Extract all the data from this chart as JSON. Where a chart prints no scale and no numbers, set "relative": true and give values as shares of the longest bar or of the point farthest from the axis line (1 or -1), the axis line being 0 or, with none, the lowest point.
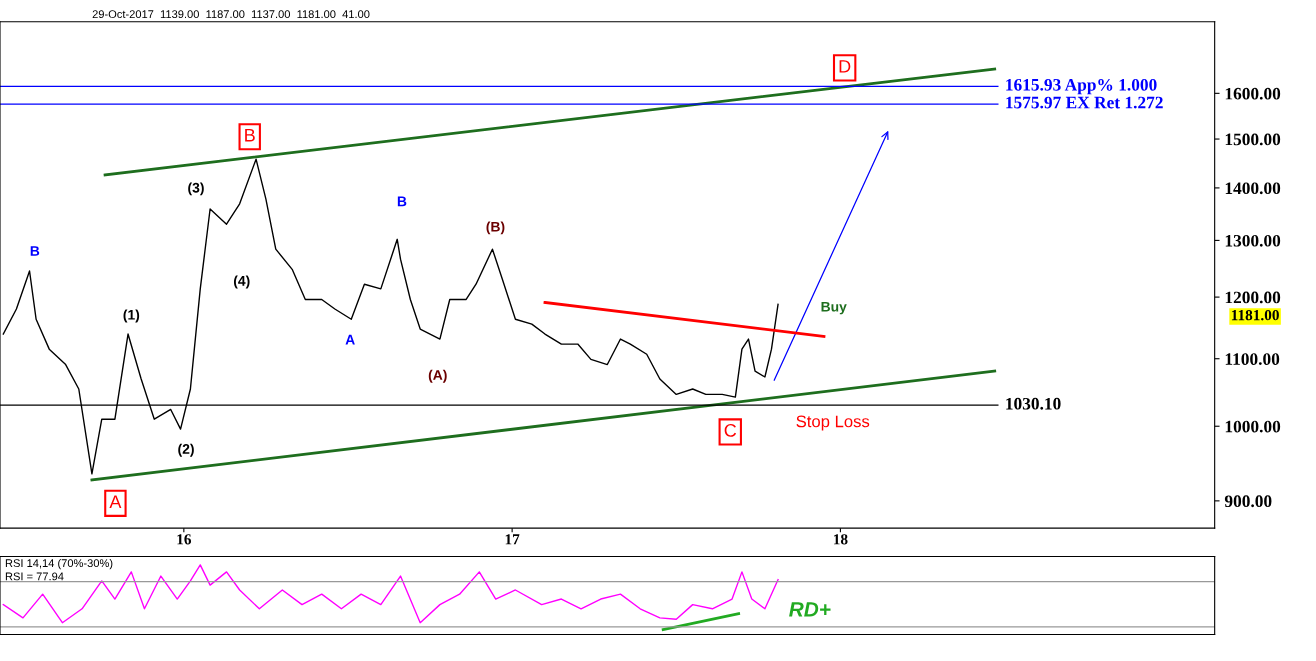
{
  "chart_data": [
    {
      "type": "line",
      "log": "y",
      "grid": false,
      "legend": false,
      "xlim": [
        2015.44,
        2019.14
      ],
      "xticks": [
        {
          "value": 2016,
          "label": "16"
        },
        {
          "value": 2017,
          "label": "17"
        },
        {
          "value": 2018,
          "label": "18"
        }
      ],
      "ylim": [
        866,
        1770
      ],
      "yticks": [
        {
          "value": 900,
          "label": "900.00"
        },
        {
          "value": 1000,
          "label": "1000.00"
        },
        {
          "value": 1100,
          "label": "1100.00"
        },
        {
          "value": 1200,
          "label": "1200.00"
        },
        {
          "value": 1300,
          "label": "1300.00"
        },
        {
          "value": 1400,
          "label": "1400.00"
        },
        {
          "value": 1500,
          "label": "1500.00"
        },
        {
          "value": 1600,
          "label": "1600.00"
        }
      ],
      "series": [
        {
          "color": "#000000",
          "x": [
            2015.45,
            2015.49,
            2015.53,
            2015.55,
            2015.59,
            2015.64,
            2015.68,
            2015.72,
            2015.75,
            2015.79,
            2015.83,
            2015.87,
            2015.91,
            2015.96,
            2015.99,
            2016.02,
            2016.05,
            2016.08,
            2016.13,
            2016.17,
            2016.22,
            2016.25,
            2016.28,
            2016.33,
            2016.37,
            2016.42,
            2016.46,
            2016.51,
            2016.55,
            2016.6,
            2016.65,
            2016.66,
            2016.69,
            2016.72,
            2016.78,
            2016.81,
            2016.86,
            2016.89,
            2016.94,
            2016.97,
            2017.01,
            2017.06,
            2017.1,
            2017.15,
            2017.2,
            2017.24,
            2017.29,
            2017.33,
            2017.36,
            2017.41,
            2017.45,
            2017.5,
            2017.55,
            2017.59,
            2017.64,
            2017.68,
            2017.7,
            2017.72,
            2017.74,
            2017.77,
            2017.79,
            2017.81
          ],
          "values": [
            1139,
            1180,
            1245,
            1163,
            1115,
            1091,
            1054,
            935,
            1010,
            1010,
            1139,
            1069,
            1010,
            1024,
            996,
            1054,
            1214,
            1359,
            1330,
            1369,
            1458,
            1378,
            1284,
            1248,
            1196,
            1196,
            1180,
            1163,
            1222,
            1214,
            1302,
            1266,
            1196,
            1147,
            1131,
            1196,
            1196,
            1222,
            1284,
            1231,
            1163,
            1155,
            1139,
            1123,
            1123,
            1099,
            1091,
            1131,
            1123,
            1107,
            1069,
            1046,
            1054,
            1046,
            1046,
            1042,
            1115,
            1131,
            1081,
            1072,
            1115,
            1188
          ]
        },
        {
          "color": "#1e6e1e",
          "x": [
            2015.76,
            2018.47
          ],
          "values": [
            1426,
            1656
          ]
        },
        {
          "color": "#1e6e1e",
          "x": [
            2015.72,
            2018.47
          ],
          "values": [
            927,
            1081
          ]
        },
        {
          "color": "#ff0000",
          "x": [
            2017.1,
            2017.95
          ],
          "values": [
            1191,
            1135
          ]
        }
      ],
      "ref_lines": [
        {
          "axis": "y",
          "value": 1030.1,
          "label": "1030.10",
          "color": "#000000"
        },
        {
          "axis": "y",
          "value": 1615.93,
          "label": "1615.93 App% 1.000",
          "color": "#0000ff"
        },
        {
          "axis": "y",
          "value": 1575.97,
          "label": "1575.97 EX Ret 1.272",
          "color": "#0000ff"
        }
      ],
      "annotations": [
        "29-Oct-2017  1139.00  1187.00  1137.00  1181.00  41.00",
        "1181.00",
        "B",
        "A",
        "C",
        "D",
        "(1)",
        "(2)",
        "(3)",
        "(4)",
        "B",
        "A",
        "B",
        "(A)",
        "(B)",
        "Stop Loss",
        "Buy"
      ]
    },
    {
      "type": "line",
      "relative": true,
      "grid": false,
      "legend": false,
      "xlim": [
        2015.44,
        2019.14
      ],
      "series": [
        {
          "color": "#ff00ff",
          "x": [
            2015.45,
            2015.51,
            2015.57,
            2015.63,
            2015.69,
            2015.75,
            2015.79,
            2015.84,
            2015.88,
            2015.93,
            2015.98,
            2016.02,
            2016.05,
            2016.08,
            2016.13,
            2016.17,
            2016.23,
            2016.3,
            2016.36,
            2016.42,
            2016.48,
            2016.54,
            2016.6,
            2016.66,
            2016.72,
            2016.78,
            2016.84,
            2016.9,
            2016.95,
            2017.01,
            2017.09,
            2017.15,
            2017.21,
            2017.27,
            2017.33,
            2017.39,
            2017.45,
            2017.5,
            2017.55,
            2017.61,
            2017.67,
            2017.7,
            2017.73,
            2017.77,
            2017.81
          ],
          "values": [
            0.43,
            0.24,
            0.58,
            0.17,
            0.37,
            0.77,
            0.51,
            0.9,
            0.37,
            0.84,
            0.51,
            0.77,
            1.0,
            0.71,
            0.9,
            0.64,
            0.37,
            0.64,
            0.43,
            0.58,
            0.37,
            0.58,
            0.43,
            0.84,
            0.17,
            0.43,
            0.58,
            0.9,
            0.51,
            0.64,
            0.43,
            0.51,
            0.37,
            0.51,
            0.58,
            0.37,
            0.24,
            0.22,
            0.43,
            0.37,
            0.51,
            0.9,
            0.51,
            0.37,
            0.79
          ]
        },
        {
          "color": "#22aa22",
          "x": [
            2017.46,
            2017.69
          ],
          "values": [
            0.07,
            0.3
          ]
        }
      ],
      "ref_lines": [
        {
          "axis": "y",
          "value": 0.76,
          "label": null,
          "color": "#999999"
        },
        {
          "axis": "y",
          "value": 0.11,
          "label": null,
          "color": "#999999"
        }
      ],
      "annotations": [
        "RSI 14,14 (70%-30%)",
        "RSI = 77.94",
        "RD+"
      ]
    }
  ]
}
